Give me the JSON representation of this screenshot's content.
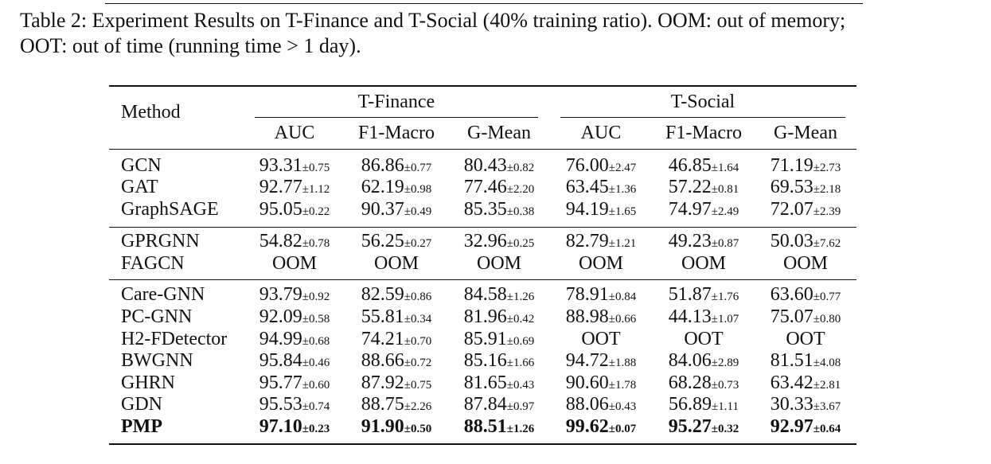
{
  "caption": {
    "line1": "Table 2: Experiment Results on T-Finance and T-Social (40% training ratio). OOM: out of memory;",
    "line2": "OOT: out of time (running time > 1 day)."
  },
  "table": {
    "method_header": "Method",
    "groups": [
      "T-Finance",
      "T-Social"
    ],
    "metrics": [
      "AUC",
      "F1-Macro",
      "G-Mean",
      "AUC",
      "F1-Macro",
      "G-Mean"
    ],
    "rows": [
      {
        "method": "GCN",
        "bold": false,
        "cells": [
          [
            "93.31",
            "±0.75"
          ],
          [
            "86.86",
            "±0.77"
          ],
          [
            "80.43",
            "±0.82"
          ],
          [
            "76.00",
            "±2.47"
          ],
          [
            "46.85",
            "±1.64"
          ],
          [
            "71.19",
            "±2.73"
          ]
        ]
      },
      {
        "method": "GAT",
        "bold": false,
        "cells": [
          [
            "92.77",
            "±1.12"
          ],
          [
            "62.19",
            "±0.98"
          ],
          [
            "77.46",
            "±2.20"
          ],
          [
            "63.45",
            "±1.36"
          ],
          [
            "57.22",
            "±0.81"
          ],
          [
            "69.53",
            "±2.18"
          ]
        ]
      },
      {
        "method": "GraphSAGE",
        "bold": false,
        "cells": [
          [
            "95.05",
            "±0.22"
          ],
          [
            "90.37",
            "±0.49"
          ],
          [
            "85.35",
            "±0.38"
          ],
          [
            "94.19",
            "±1.65"
          ],
          [
            "74.97",
            "±2.49"
          ],
          [
            "72.07",
            "±2.39"
          ]
        ]
      },
      {
        "method": "GPRGNN",
        "bold": false,
        "cells": [
          [
            "54.82",
            "±0.78"
          ],
          [
            "56.25",
            "±0.27"
          ],
          [
            "32.96",
            "±0.25"
          ],
          [
            "82.79",
            "±1.21"
          ],
          [
            "49.23",
            "±0.87"
          ],
          [
            "50.03",
            "±7.62"
          ]
        ]
      },
      {
        "method": "FAGCN",
        "bold": false,
        "cells": [
          [
            "OOM",
            ""
          ],
          [
            "OOM",
            ""
          ],
          [
            "OOM",
            ""
          ],
          [
            "OOM",
            ""
          ],
          [
            "OOM",
            ""
          ],
          [
            "OOM",
            ""
          ]
        ]
      },
      {
        "method": "Care-GNN",
        "bold": false,
        "cells": [
          [
            "93.79",
            "±0.92"
          ],
          [
            "82.59",
            "±0.86"
          ],
          [
            "84.58",
            "±1.26"
          ],
          [
            "78.91",
            "±0.84"
          ],
          [
            "51.87",
            "±1.76"
          ],
          [
            "63.60",
            "±0.77"
          ]
        ]
      },
      {
        "method": "PC-GNN",
        "bold": false,
        "cells": [
          [
            "92.09",
            "±0.58"
          ],
          [
            "55.81",
            "±0.34"
          ],
          [
            "81.96",
            "±0.42"
          ],
          [
            "88.98",
            "±0.66"
          ],
          [
            "44.13",
            "±1.07"
          ],
          [
            "75.07",
            "±0.80"
          ]
        ]
      },
      {
        "method": "H2-FDetector",
        "bold": false,
        "cells": [
          [
            "94.99",
            "±0.68"
          ],
          [
            "74.21",
            "±0.70"
          ],
          [
            "85.91",
            "±0.69"
          ],
          [
            "OOT",
            ""
          ],
          [
            "OOT",
            ""
          ],
          [
            "OOT",
            ""
          ]
        ]
      },
      {
        "method": "BWGNN",
        "bold": false,
        "cells": [
          [
            "95.84",
            "±0.46"
          ],
          [
            "88.66",
            "±0.72"
          ],
          [
            "85.16",
            "±1.66"
          ],
          [
            "94.72",
            "±1.88"
          ],
          [
            "84.06",
            "±2.89"
          ],
          [
            "81.51",
            "±4.08"
          ]
        ]
      },
      {
        "method": "GHRN",
        "bold": false,
        "cells": [
          [
            "95.77",
            "±0.60"
          ],
          [
            "87.92",
            "±0.75"
          ],
          [
            "81.65",
            "±0.43"
          ],
          [
            "90.60",
            "±1.78"
          ],
          [
            "68.28",
            "±0.73"
          ],
          [
            "63.42",
            "±2.81"
          ]
        ]
      },
      {
        "method": "GDN",
        "bold": false,
        "cells": [
          [
            "95.53",
            "±0.74"
          ],
          [
            "88.75",
            "±2.26"
          ],
          [
            "87.84",
            "±0.97"
          ],
          [
            "88.06",
            "±0.43"
          ],
          [
            "56.89",
            "±1.11"
          ],
          [
            "30.33",
            "±3.67"
          ]
        ]
      },
      {
        "method": "PMP",
        "bold": true,
        "cells": [
          [
            "97.10",
            "±0.23"
          ],
          [
            "91.90",
            "±0.50"
          ],
          [
            "88.51",
            "±1.26"
          ],
          [
            "99.62",
            "±0.07"
          ],
          [
            "95.27",
            "±0.32"
          ],
          [
            "92.97",
            "±0.64"
          ]
        ]
      }
    ]
  }
}
